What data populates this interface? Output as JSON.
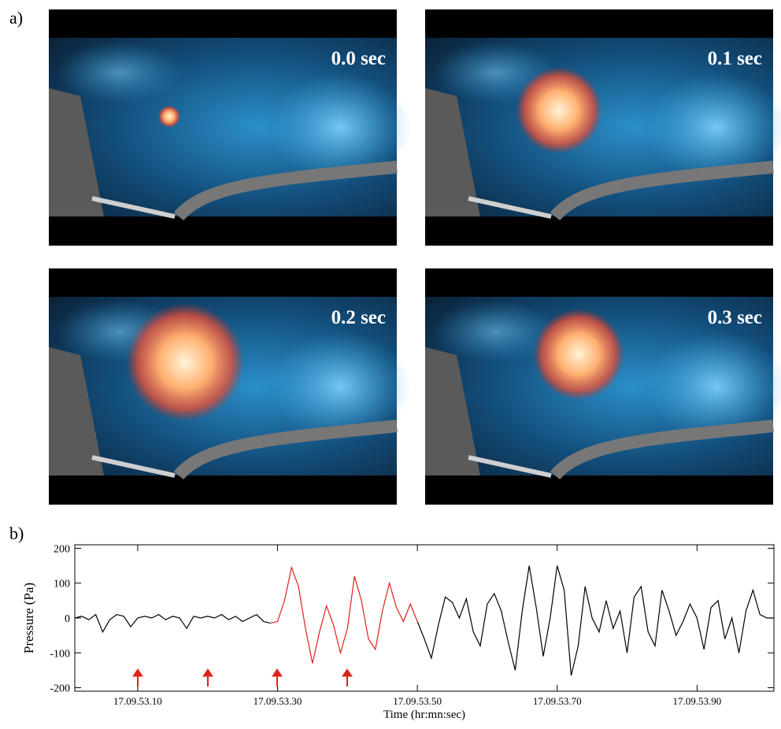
{
  "figure": {
    "label_a": "a)",
    "label_b": "b)",
    "frames": [
      "0.0 sec",
      "0.1 sec",
      "0.2 sec",
      "0.3 sec"
    ]
  },
  "chart_data": {
    "type": "line",
    "ylabel": "Pressure (Pa)",
    "xlabel": "Time (hr:mn:sec)",
    "xlim": [
      53.01,
      54.01
    ],
    "ylim": [
      -210,
      210
    ],
    "yticks": [
      -200,
      -100,
      0,
      100,
      200
    ],
    "xticks": [
      {
        "value": 53.1,
        "label": "17.09.53.10"
      },
      {
        "value": 53.3,
        "label": "17.09.53.30"
      },
      {
        "value": 53.5,
        "label": "17.09.53.50"
      },
      {
        "value": 53.7,
        "label": "17.09.53.70"
      },
      {
        "value": 53.9,
        "label": "17.09.53.90"
      }
    ],
    "x": [
      53.01,
      53.02,
      53.03,
      53.04,
      53.05,
      53.06,
      53.07,
      53.08,
      53.09,
      53.1,
      53.11,
      53.12,
      53.13,
      53.14,
      53.15,
      53.16,
      53.17,
      53.18,
      53.19,
      53.2,
      53.21,
      53.22,
      53.23,
      53.24,
      53.25,
      53.26,
      53.27,
      53.28,
      53.29,
      53.3,
      53.31,
      53.32,
      53.33,
      53.34,
      53.35,
      53.36,
      53.37,
      53.38,
      53.39,
      53.4,
      53.41,
      53.42,
      53.43,
      53.44,
      53.45,
      53.46,
      53.47,
      53.48,
      53.49,
      53.5,
      53.51,
      53.52,
      53.53,
      53.54,
      53.55,
      53.56,
      53.57,
      53.58,
      53.59,
      53.6,
      53.61,
      53.62,
      53.63,
      53.64,
      53.65,
      53.66,
      53.67,
      53.68,
      53.69,
      53.7,
      53.71,
      53.72,
      53.73,
      53.74,
      53.75,
      53.76,
      53.77,
      53.78,
      53.79,
      53.8,
      53.81,
      53.82,
      53.83,
      53.84,
      53.85,
      53.86,
      53.87,
      53.88,
      53.89,
      53.9,
      53.91,
      53.92,
      53.93,
      53.94,
      53.95,
      53.96,
      53.97,
      53.98,
      53.99,
      54.0,
      54.01
    ],
    "series": [
      {
        "color": "#000000",
        "values": [
          0,
          5,
          -5,
          10,
          -40,
          -5,
          10,
          5,
          -25,
          0,
          5,
          0,
          10,
          -5,
          5,
          0,
          -30,
          5,
          0,
          5,
          0,
          10,
          -5,
          5,
          -10,
          0,
          10,
          -10,
          -15,
          null,
          null,
          null,
          null,
          null,
          null,
          null,
          null,
          null,
          null,
          null,
          null,
          null,
          null,
          null,
          null,
          null,
          null,
          null,
          null,
          -10,
          -60,
          -115,
          -20,
          60,
          45,
          0,
          55,
          -40,
          -80,
          40,
          70,
          20,
          -70,
          -150,
          20,
          150,
          30,
          -110,
          0,
          150,
          80,
          -165,
          -80,
          90,
          0,
          -40,
          50,
          -30,
          20,
          -100,
          60,
          90,
          -40,
          -80,
          80,
          20,
          -50,
          -10,
          40,
          0,
          -90,
          30,
          50,
          -60,
          0,
          -100,
          20,
          80,
          10,
          0,
          0
        ]
      },
      {
        "color": "#e0201c",
        "values": [
          null,
          null,
          null,
          null,
          null,
          null,
          null,
          null,
          null,
          null,
          null,
          null,
          null,
          null,
          null,
          null,
          null,
          null,
          null,
          null,
          null,
          null,
          null,
          null,
          null,
          null,
          null,
          null,
          -15,
          -10,
          50,
          145,
          90,
          -30,
          -130,
          -40,
          35,
          -20,
          -100,
          -30,
          120,
          50,
          -60,
          -90,
          20,
          100,
          30,
          -10,
          40,
          -10,
          null,
          null,
          null,
          null,
          null,
          null,
          null,
          null,
          null,
          null,
          null,
          null,
          null,
          null,
          null,
          null,
          null,
          null,
          null,
          null,
          null,
          null,
          null,
          null,
          null,
          null,
          null,
          null,
          null,
          null,
          null,
          null,
          null,
          null,
          null,
          null,
          null,
          null,
          null,
          null,
          null,
          null,
          null,
          null,
          null,
          null,
          null,
          null,
          null,
          null,
          null
        ]
      }
    ]
  }
}
